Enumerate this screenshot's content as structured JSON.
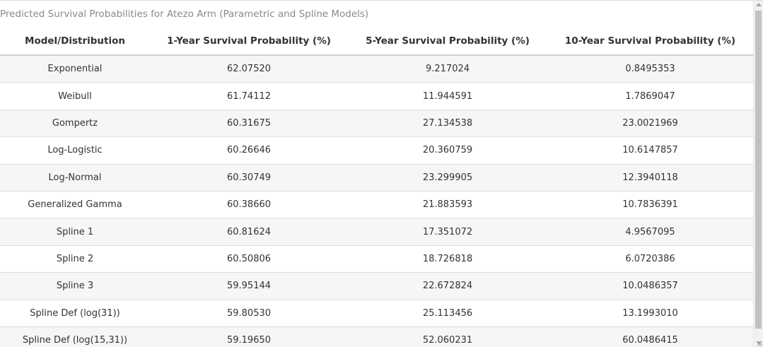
{
  "caption": "Predicted Survival Probabilities for Atezo Arm (Parametric and Spline Models)",
  "columns": [
    "Model/Distribution",
    "1-Year Survival Probability (%)",
    "5-Year Survival Probability (%)",
    "10-Year Survival Probability (%)"
  ],
  "rows": [
    [
      "Exponential",
      "62.07520",
      "9.217024",
      "0.8495353"
    ],
    [
      "Weibull",
      "61.74112",
      "11.944591",
      "1.7869047"
    ],
    [
      "Gompertz",
      "60.31675",
      "27.134538",
      "23.0021969"
    ],
    [
      "Log-Logistic",
      "60.26646",
      "20.360759",
      "10.6147857"
    ],
    [
      "Log-Normal",
      "60.30749",
      "23.299905",
      "12.3940118"
    ],
    [
      "Generalized Gamma",
      "60.38660",
      "21.883593",
      "10.7836391"
    ],
    [
      "Spline 1",
      "60.81624",
      "17.351072",
      "4.9567095"
    ],
    [
      "Spline 2",
      "60.50806",
      "18.726818",
      "6.0720386"
    ],
    [
      "Spline 3",
      "59.95144",
      "22.672824",
      "10.0486357"
    ],
    [
      "Spline Def (log(31))",
      "59.80530",
      "25.113456",
      "13.1993010"
    ],
    [
      "Spline Def (log(15,31))",
      "59.19650",
      "52.060231",
      "60.0486415"
    ]
  ]
}
